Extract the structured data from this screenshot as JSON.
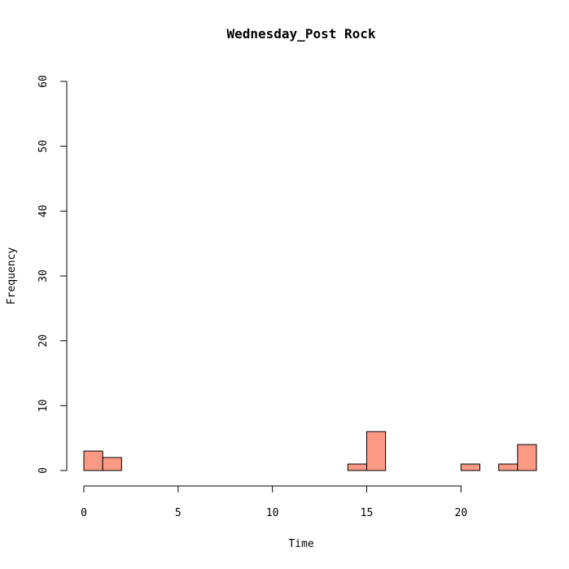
{
  "chart_data": {
    "type": "bar",
    "title": "Wednesday_Post Rock",
    "xlabel": "Time",
    "ylabel": "Frequency",
    "xlim": [
      0,
      24
    ],
    "ylim": [
      0,
      60
    ],
    "x_ticks": [
      0,
      5,
      10,
      15,
      20
    ],
    "y_ticks": [
      0,
      10,
      20,
      30,
      40,
      50,
      60
    ],
    "bar_color": "#fa9a84",
    "bins": [
      {
        "start": 0,
        "end": 1,
        "count": 3
      },
      {
        "start": 1,
        "end": 2,
        "count": 2
      },
      {
        "start": 2,
        "end": 3,
        "count": 0
      },
      {
        "start": 3,
        "end": 4,
        "count": 0
      },
      {
        "start": 4,
        "end": 5,
        "count": 0
      },
      {
        "start": 5,
        "end": 6,
        "count": 0
      },
      {
        "start": 6,
        "end": 7,
        "count": 0
      },
      {
        "start": 7,
        "end": 8,
        "count": 0
      },
      {
        "start": 8,
        "end": 9,
        "count": 0
      },
      {
        "start": 9,
        "end": 10,
        "count": 0
      },
      {
        "start": 10,
        "end": 11,
        "count": 0
      },
      {
        "start": 11,
        "end": 12,
        "count": 0
      },
      {
        "start": 12,
        "end": 13,
        "count": 0
      },
      {
        "start": 13,
        "end": 14,
        "count": 0
      },
      {
        "start": 14,
        "end": 15,
        "count": 1
      },
      {
        "start": 15,
        "end": 16,
        "count": 6
      },
      {
        "start": 16,
        "end": 17,
        "count": 0
      },
      {
        "start": 17,
        "end": 18,
        "count": 0
      },
      {
        "start": 18,
        "end": 19,
        "count": 0
      },
      {
        "start": 19,
        "end": 20,
        "count": 0
      },
      {
        "start": 20,
        "end": 21,
        "count": 1
      },
      {
        "start": 21,
        "end": 22,
        "count": 0
      },
      {
        "start": 22,
        "end": 23,
        "count": 1
      },
      {
        "start": 23,
        "end": 24,
        "count": 4
      }
    ]
  }
}
